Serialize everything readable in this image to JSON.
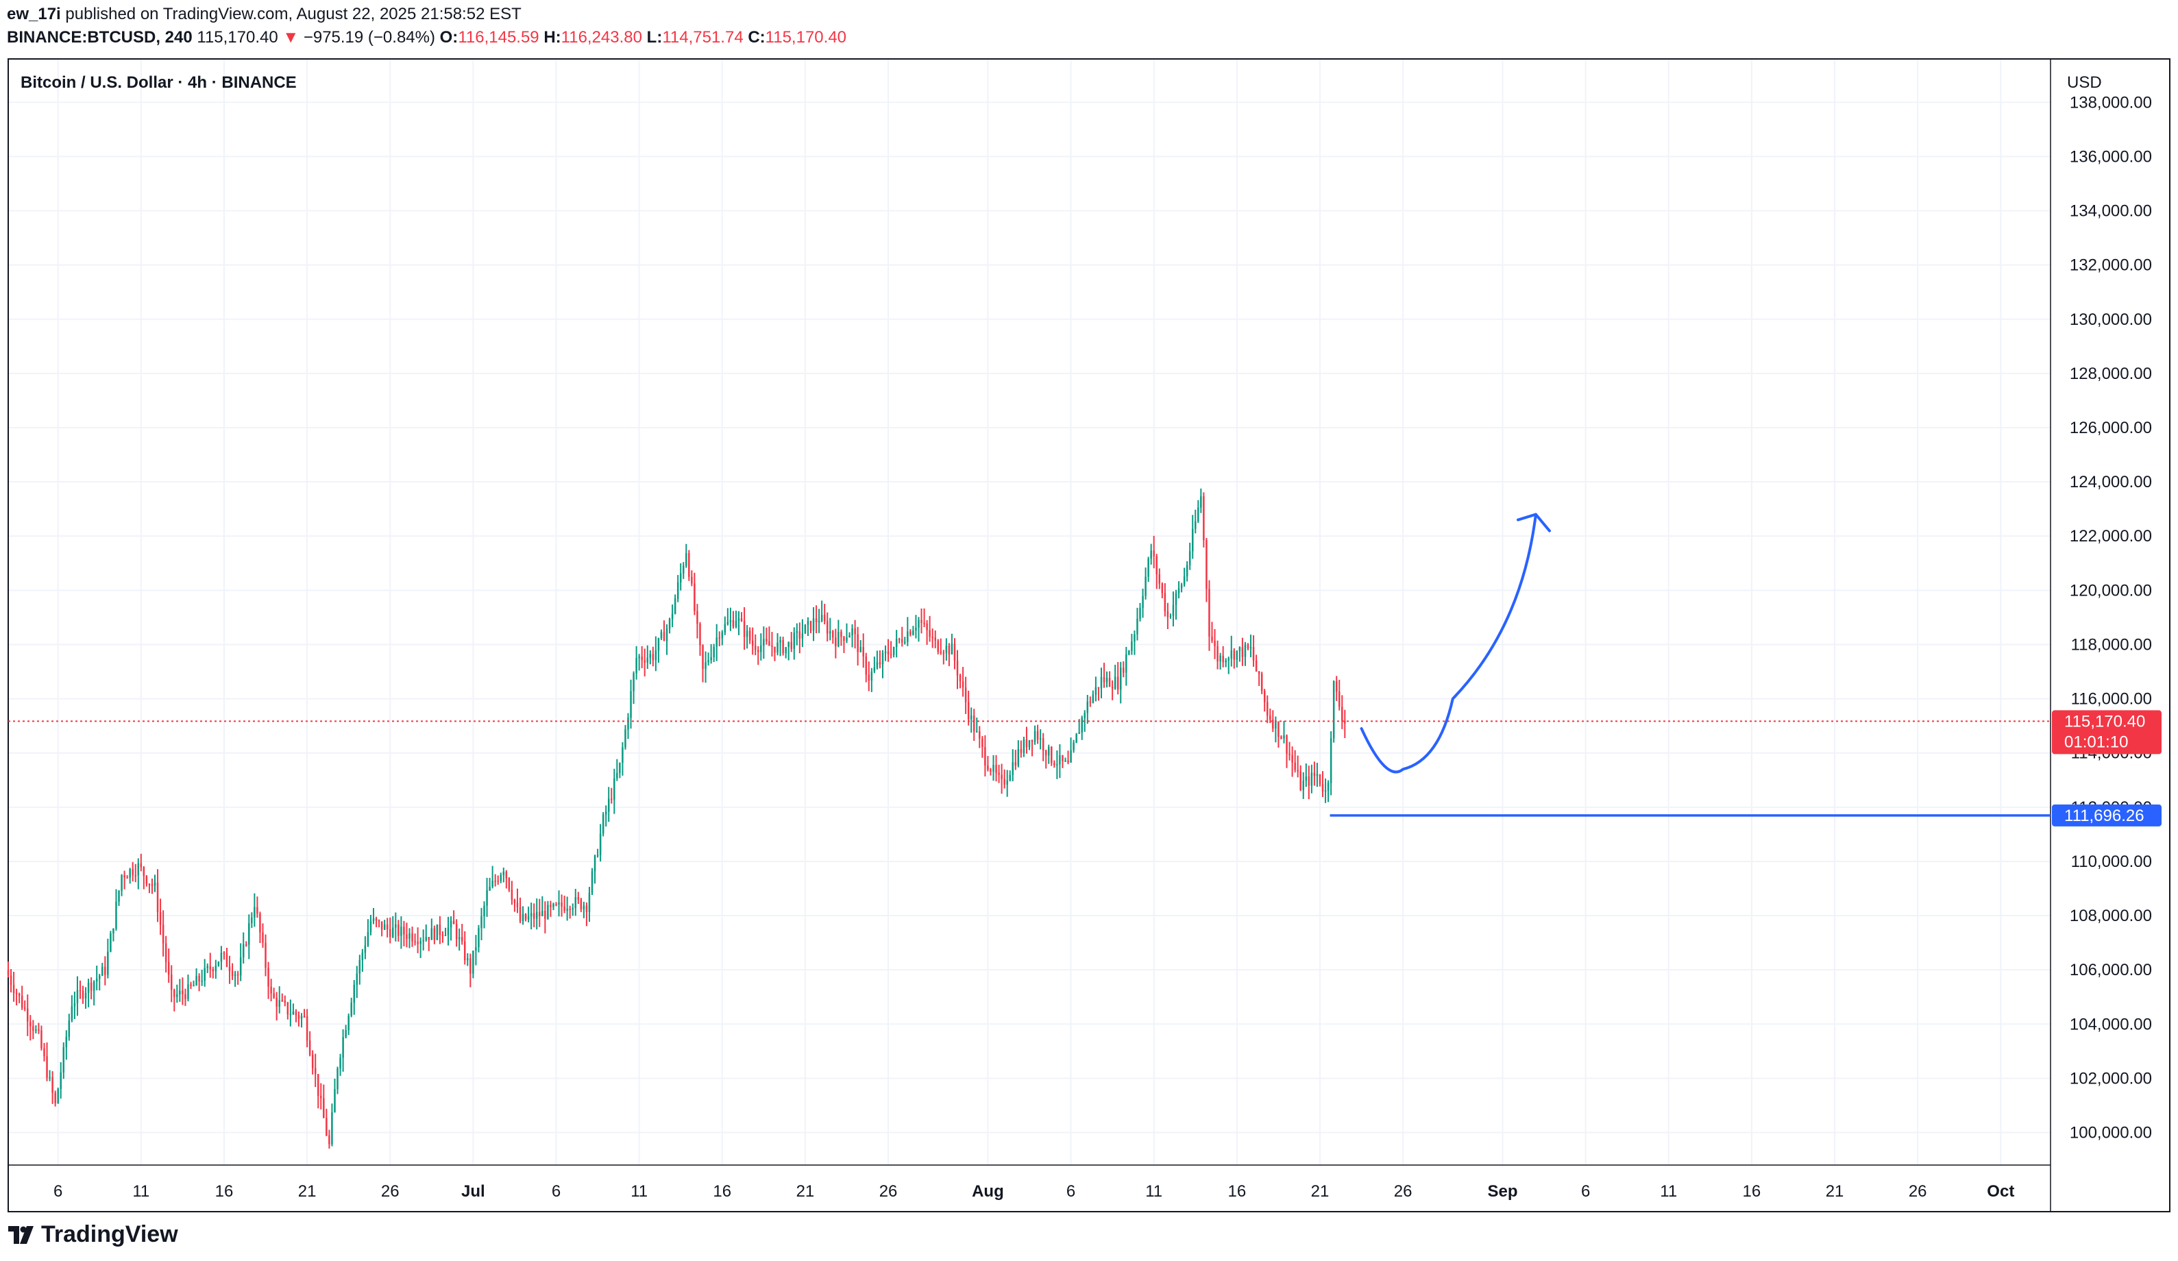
{
  "header": {
    "author": "ew_17i",
    "published_text": "published on TradingView.com, August 22, 2025 21:58:52 EST",
    "symbol": "BINANCE:BTCUSD, 240",
    "last": "115,170.40",
    "change_arrow": "▼",
    "change": "−975.19 (−0.84%)",
    "o_label": "O:",
    "o": "116,145.59",
    "h_label": "H:",
    "h": "116,243.80",
    "l_label": "L:",
    "l": "114,751.74",
    "c_label": "C:",
    "c": "115,170.40"
  },
  "legend": {
    "title": "Bitcoin / U.S. Dollar · 4h · BINANCE"
  },
  "price_scale": {
    "currency": "USD"
  },
  "last_price_label": {
    "price": "115,170.40",
    "countdown": "01:01:10"
  },
  "level_label": {
    "price": "111,696.26"
  },
  "footer": {
    "brand": "TradingView"
  },
  "colors": {
    "up": "#089981",
    "down": "#f23645",
    "drawing": "#2962ff",
    "last_price": "#f23645",
    "grid": "#f0f3fa"
  },
  "chart_data": {
    "type": "candlestick",
    "title": "Bitcoin / U.S. Dollar · 4h · BINANCE",
    "ylabel": "USD",
    "ylim": [
      98800,
      139600
    ],
    "xlim": [
      "2025-06-03",
      "2025-10-04"
    ],
    "y_ticks": [
      "100,000.00",
      "102,000.00",
      "104,000.00",
      "106,000.00",
      "108,000.00",
      "110,000.00",
      "112,000.00",
      "114,000.00",
      "116,000.00",
      "118,000.00",
      "120,000.00",
      "122,000.00",
      "124,000.00",
      "126,000.00",
      "128,000.00",
      "130,000.00",
      "132,000.00",
      "134,000.00",
      "136,000.00",
      "138,000.00"
    ],
    "x_ticks": [
      {
        "date": "2025-06-06",
        "label": "6"
      },
      {
        "date": "2025-06-11",
        "label": "11"
      },
      {
        "date": "2025-06-16",
        "label": "16"
      },
      {
        "date": "2025-06-21",
        "label": "21"
      },
      {
        "date": "2025-06-26",
        "label": "26"
      },
      {
        "date": "2025-07-01",
        "label": "Jul"
      },
      {
        "date": "2025-07-06",
        "label": "6"
      },
      {
        "date": "2025-07-11",
        "label": "11"
      },
      {
        "date": "2025-07-16",
        "label": "16"
      },
      {
        "date": "2025-07-21",
        "label": "21"
      },
      {
        "date": "2025-07-26",
        "label": "26"
      },
      {
        "date": "2025-08-01",
        "label": "Aug"
      },
      {
        "date": "2025-08-06",
        "label": "6"
      },
      {
        "date": "2025-08-11",
        "label": "11"
      },
      {
        "date": "2025-08-16",
        "label": "16"
      },
      {
        "date": "2025-08-21",
        "label": "21"
      },
      {
        "date": "2025-08-26",
        "label": "26"
      },
      {
        "date": "2025-09-01",
        "label": "Sep"
      },
      {
        "date": "2025-09-06",
        "label": "6"
      },
      {
        "date": "2025-09-11",
        "label": "11"
      },
      {
        "date": "2025-09-16",
        "label": "16"
      },
      {
        "date": "2025-09-21",
        "label": "21"
      },
      {
        "date": "2025-09-26",
        "label": "26"
      },
      {
        "date": "2025-10-01",
        "label": "Oct"
      }
    ],
    "price_path": [
      [
        "2025-06-03",
        106000
      ],
      [
        "2025-06-05",
        103500
      ],
      [
        "2025-06-06",
        101000
      ],
      [
        "2025-06-07",
        104800
      ],
      [
        "2025-06-09",
        106000
      ],
      [
        "2025-06-10",
        109500
      ],
      [
        "2025-06-11",
        109800
      ],
      [
        "2025-06-12",
        109000
      ],
      [
        "2025-06-13",
        105000
      ],
      [
        "2025-06-14",
        105200
      ],
      [
        "2025-06-16",
        106500
      ],
      [
        "2025-06-17",
        105800
      ],
      [
        "2025-06-18",
        108500
      ],
      [
        "2025-06-19",
        105000
      ],
      [
        "2025-06-20",
        104500
      ],
      [
        "2025-06-21",
        104200
      ],
      [
        "2025-06-22",
        101000
      ],
      [
        "2025-06-22.5",
        99500
      ],
      [
        "2025-06-23",
        102500
      ],
      [
        "2025-06-24",
        105500
      ],
      [
        "2025-06-25",
        107800
      ],
      [
        "2025-06-26",
        107500
      ],
      [
        "2025-06-28",
        107200
      ],
      [
        "2025-06-30",
        107600
      ],
      [
        "2025-07-01",
        106000
      ],
      [
        "2025-07-02",
        108800
      ],
      [
        "2025-07-03",
        109800
      ],
      [
        "2025-07-04",
        107800
      ],
      [
        "2025-07-06",
        108200
      ],
      [
        "2025-07-07",
        108500
      ],
      [
        "2025-07-08",
        108400
      ],
      [
        "2025-07-09",
        111500
      ],
      [
        "2025-07-10",
        113500
      ],
      [
        "2025-07-11",
        117500
      ],
      [
        "2025-07-12",
        117600
      ],
      [
        "2025-07-13",
        118800
      ],
      [
        "2025-07-14",
        121500
      ],
      [
        "2025-07-15",
        117000
      ],
      [
        "2025-07-16",
        118500
      ],
      [
        "2025-07-17",
        119000
      ],
      [
        "2025-07-18",
        118000
      ],
      [
        "2025-07-20",
        117900
      ],
      [
        "2025-07-22",
        119000
      ],
      [
        "2025-07-23",
        118200
      ],
      [
        "2025-07-24",
        118500
      ],
      [
        "2025-07-25",
        116800
      ],
      [
        "2025-07-26",
        117600
      ],
      [
        "2025-07-28",
        118900
      ],
      [
        "2025-07-29",
        118000
      ],
      [
        "2025-07-30",
        117800
      ],
      [
        "2025-07-31",
        115500
      ],
      [
        "2025-08-01",
        113800
      ],
      [
        "2025-08-02",
        112800
      ],
      [
        "2025-08-03",
        114000
      ],
      [
        "2025-08-04",
        114800
      ],
      [
        "2025-08-05",
        113800
      ],
      [
        "2025-08-06",
        113500
      ],
      [
        "2025-08-07",
        115600
      ],
      [
        "2025-08-08",
        116700
      ],
      [
        "2025-08-09",
        116600
      ],
      [
        "2025-08-10",
        118500
      ],
      [
        "2025-08-11",
        121500
      ],
      [
        "2025-08-12",
        119000
      ],
      [
        "2025-08-13",
        120500
      ],
      [
        "2025-08-14",
        123500
      ],
      [
        "2025-08-14.5",
        118500
      ],
      [
        "2025-08-15",
        117500
      ],
      [
        "2025-08-16",
        117700
      ],
      [
        "2025-08-17",
        117800
      ],
      [
        "2025-08-18",
        115500
      ],
      [
        "2025-08-19",
        114500
      ],
      [
        "2025-08-20",
        112800
      ],
      [
        "2025-08-21",
        113200
      ],
      [
        "2025-08-21.6",
        112400
      ],
      [
        "2025-08-22",
        116500
      ],
      [
        "2025-08-22.6",
        115170
      ]
    ],
    "drawings": [
      {
        "type": "horizontal_ray",
        "price": 111696.26,
        "from": "2025-08-21.6"
      },
      {
        "type": "projection_curve",
        "points": [
          [
            "2025-08-23.5",
            114900
          ],
          [
            "2025-08-26",
            113400
          ],
          [
            "2025-08-29",
            116000
          ],
          [
            "2025-09-03",
            122800
          ]
        ],
        "arrow": "up"
      }
    ],
    "last_price": 115170.4
  }
}
